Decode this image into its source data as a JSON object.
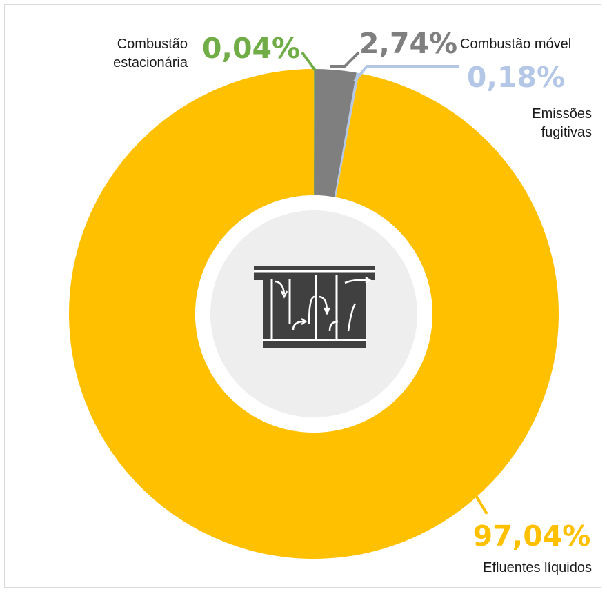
{
  "chart_data": {
    "type": "pie",
    "variant": "donut",
    "categories": [
      "Combustão estacionária",
      "Combustão móvel",
      "Emissões fugitivas",
      "Efluentes líquidos"
    ],
    "values": [
      0.04,
      2.74,
      0.18,
      97.04
    ],
    "value_labels": [
      "0,04%",
      "2,74%",
      "0,18%",
      "97,04%"
    ],
    "colors": [
      "#70ad47",
      "#7f7f7f",
      "#b4c7e7",
      "#ffc000"
    ],
    "label_colors": [
      "#70ad47",
      "#7f7f7f",
      "#b4c7e7",
      "#ffc000"
    ],
    "label_lines": [
      "Combustão\nestacionária",
      "Combustão móvel",
      "Emissões\nfugitivas",
      "Efluentes líquidos"
    ],
    "center_icon": "wastewater-treatment-tank-icon",
    "start_angle_deg": -90,
    "direction": "clockwise"
  }
}
